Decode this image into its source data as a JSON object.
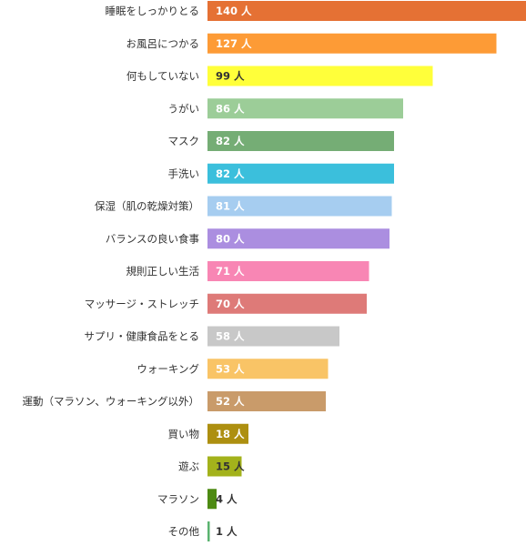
{
  "chart_data": {
    "type": "bar",
    "orientation": "horizontal",
    "title": "",
    "xlabel": "",
    "ylabel": "",
    "value_unit": "人",
    "xlim": [
      0,
      140
    ],
    "grid": false,
    "legend": "none",
    "categories": [
      "睡眠をしっかりとる",
      "お風呂につかる",
      "何もしていない",
      "うがい",
      "マスク",
      "手洗い",
      "保湿（肌の乾燥対策）",
      "バランスの良い食事",
      "規則正しい生活",
      "マッサージ・ストレッチ",
      "サプリ・健康食品をとる",
      "ウォーキング",
      "運動（マラソン、ウォーキング以外）",
      "買い物",
      "遊ぶ",
      "マラソン",
      "その他"
    ],
    "values": [
      140,
      127,
      99,
      86,
      82,
      82,
      81,
      80,
      71,
      70,
      58,
      53,
      52,
      18,
      15,
      4,
      1
    ],
    "value_labels": [
      "140 人",
      "127 人",
      "99 人",
      "86 人",
      "82 人",
      "82 人",
      "81 人",
      "80 人",
      "71 人",
      "70 人",
      "58 人",
      "53 人",
      "52 人",
      "18 人",
      "15 人",
      "4 人",
      "1 人"
    ],
    "colors": [
      "#e57134",
      "#fd9b36",
      "#ffff3a",
      "#9ccd98",
      "#75ad75",
      "#3bbfdc",
      "#a6cdf0",
      "#ab8ee0",
      "#f886b4",
      "#de7a78",
      "#c8c8c8",
      "#f9c466",
      "#c99b6a",
      "#ad8f10",
      "#a3b21b",
      "#4d8a12",
      "#5ab36f"
    ],
    "value_label_colors": [
      "#ffffff",
      "#ffffff",
      "#333333",
      "#ffffff",
      "#ffffff",
      "#ffffff",
      "#ffffff",
      "#ffffff",
      "#ffffff",
      "#ffffff",
      "#ffffff",
      "#ffffff",
      "#ffffff",
      "#ffffff",
      "#333333",
      "#333333",
      "#333333"
    ]
  }
}
